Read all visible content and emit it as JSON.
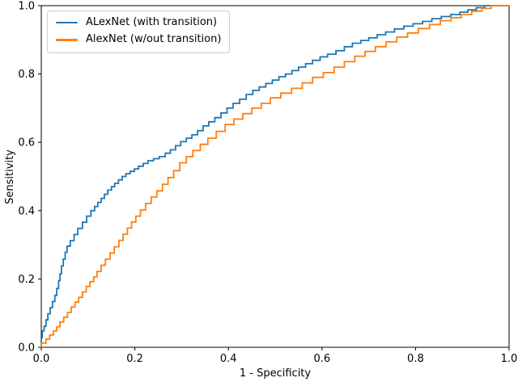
{
  "figure": {
    "background": "#ffffff",
    "axis_color": "#000000",
    "legend_border_color": "#cccccc"
  },
  "chart_data": {
    "type": "line",
    "subtype": "roc-step-curve",
    "title": "",
    "xlabel": "1 - Specificity",
    "ylabel": "Sensitivity",
    "xlim": [
      0.0,
      1.0
    ],
    "ylim": [
      0.0,
      1.0
    ],
    "grid": false,
    "legend_position": "upper-left",
    "x_ticks": [
      {
        "v": 0.0,
        "label": "0.0"
      },
      {
        "v": 0.2,
        "label": "0.2"
      },
      {
        "v": 0.4,
        "label": "0.4"
      },
      {
        "v": 0.6,
        "label": "0.6"
      },
      {
        "v": 0.8,
        "label": "0.8"
      },
      {
        "v": 1.0,
        "label": "1.0"
      }
    ],
    "y_ticks": [
      {
        "v": 0.0,
        "label": "0.0"
      },
      {
        "v": 0.2,
        "label": "0.2"
      },
      {
        "v": 0.4,
        "label": "0.4"
      },
      {
        "v": 0.6,
        "label": "0.6"
      },
      {
        "v": 0.8,
        "label": "0.8"
      },
      {
        "v": 1.0,
        "label": "1.0"
      }
    ],
    "series": [
      {
        "name": "ALexNet (with transition)",
        "color": "#1f77b4",
        "line_width": 1.8,
        "points": [
          [
            0.0,
            0.0
          ],
          [
            0.002,
            0.028
          ],
          [
            0.006,
            0.048
          ],
          [
            0.01,
            0.062
          ],
          [
            0.014,
            0.08
          ],
          [
            0.019,
            0.098
          ],
          [
            0.024,
            0.116
          ],
          [
            0.029,
            0.134
          ],
          [
            0.033,
            0.152
          ],
          [
            0.037,
            0.172
          ],
          [
            0.04,
            0.195
          ],
          [
            0.043,
            0.215
          ],
          [
            0.047,
            0.238
          ],
          [
            0.051,
            0.258
          ],
          [
            0.055,
            0.278
          ],
          [
            0.062,
            0.296
          ],
          [
            0.07,
            0.312
          ],
          [
            0.078,
            0.33
          ],
          [
            0.088,
            0.348
          ],
          [
            0.097,
            0.366
          ],
          [
            0.106,
            0.384
          ],
          [
            0.114,
            0.4
          ],
          [
            0.121,
            0.412
          ],
          [
            0.128,
            0.424
          ],
          [
            0.135,
            0.436
          ],
          [
            0.142,
            0.448
          ],
          [
            0.15,
            0.46
          ],
          [
            0.157,
            0.47
          ],
          [
            0.165,
            0.48
          ],
          [
            0.173,
            0.49
          ],
          [
            0.181,
            0.5
          ],
          [
            0.19,
            0.508
          ],
          [
            0.199,
            0.515
          ],
          [
            0.208,
            0.522
          ],
          [
            0.218,
            0.53
          ],
          [
            0.228,
            0.538
          ],
          [
            0.24,
            0.546
          ],
          [
            0.252,
            0.552
          ],
          [
            0.265,
            0.558
          ],
          [
            0.276,
            0.568
          ],
          [
            0.287,
            0.578
          ],
          [
            0.298,
            0.59
          ],
          [
            0.31,
            0.602
          ],
          [
            0.322,
            0.612
          ],
          [
            0.334,
            0.622
          ],
          [
            0.346,
            0.634
          ],
          [
            0.358,
            0.648
          ],
          [
            0.371,
            0.66
          ],
          [
            0.384,
            0.672
          ],
          [
            0.397,
            0.686
          ],
          [
            0.41,
            0.7
          ],
          [
            0.424,
            0.714
          ],
          [
            0.438,
            0.726
          ],
          [
            0.452,
            0.74
          ],
          [
            0.466,
            0.752
          ],
          [
            0.48,
            0.762
          ],
          [
            0.494,
            0.772
          ],
          [
            0.508,
            0.782
          ],
          [
            0.522,
            0.792
          ],
          [
            0.536,
            0.8
          ],
          [
            0.55,
            0.81
          ],
          [
            0.565,
            0.82
          ],
          [
            0.58,
            0.83
          ],
          [
            0.596,
            0.84
          ],
          [
            0.612,
            0.85
          ],
          [
            0.63,
            0.858
          ],
          [
            0.648,
            0.868
          ],
          [
            0.665,
            0.88
          ],
          [
            0.683,
            0.89
          ],
          [
            0.7,
            0.898
          ],
          [
            0.718,
            0.906
          ],
          [
            0.736,
            0.915
          ],
          [
            0.755,
            0.923
          ],
          [
            0.775,
            0.932
          ],
          [
            0.795,
            0.94
          ],
          [
            0.815,
            0.947
          ],
          [
            0.835,
            0.954
          ],
          [
            0.855,
            0.962
          ],
          [
            0.875,
            0.968
          ],
          [
            0.895,
            0.974
          ],
          [
            0.912,
            0.981
          ],
          [
            0.93,
            0.988
          ],
          [
            0.948,
            0.994
          ],
          [
            0.962,
            1.0
          ],
          [
            1.0,
            1.0
          ]
        ]
      },
      {
        "name": "AlexNet (w/out transition)",
        "color": "#ff7f0e",
        "line_width": 1.8,
        "points": [
          [
            0.0,
            0.0
          ],
          [
            0.01,
            0.012
          ],
          [
            0.018,
            0.024
          ],
          [
            0.026,
            0.036
          ],
          [
            0.033,
            0.048
          ],
          [
            0.04,
            0.06
          ],
          [
            0.048,
            0.074
          ],
          [
            0.056,
            0.088
          ],
          [
            0.064,
            0.102
          ],
          [
            0.072,
            0.118
          ],
          [
            0.08,
            0.132
          ],
          [
            0.088,
            0.146
          ],
          [
            0.096,
            0.162
          ],
          [
            0.104,
            0.178
          ],
          [
            0.112,
            0.192
          ],
          [
            0.119,
            0.206
          ],
          [
            0.128,
            0.222
          ],
          [
            0.137,
            0.24
          ],
          [
            0.147,
            0.258
          ],
          [
            0.156,
            0.276
          ],
          [
            0.166,
            0.294
          ],
          [
            0.175,
            0.313
          ],
          [
            0.184,
            0.331
          ],
          [
            0.193,
            0.349
          ],
          [
            0.202,
            0.367
          ],
          [
            0.212,
            0.384
          ],
          [
            0.223,
            0.402
          ],
          [
            0.235,
            0.421
          ],
          [
            0.247,
            0.44
          ],
          [
            0.259,
            0.458
          ],
          [
            0.271,
            0.477
          ],
          [
            0.283,
            0.497
          ],
          [
            0.296,
            0.517
          ],
          [
            0.31,
            0.54
          ],
          [
            0.324,
            0.558
          ],
          [
            0.34,
            0.576
          ],
          [
            0.356,
            0.594
          ],
          [
            0.374,
            0.612
          ],
          [
            0.393,
            0.632
          ],
          [
            0.412,
            0.652
          ],
          [
            0.431,
            0.668
          ],
          [
            0.45,
            0.684
          ],
          [
            0.47,
            0.7
          ],
          [
            0.49,
            0.714
          ],
          [
            0.512,
            0.73
          ],
          [
            0.535,
            0.744
          ],
          [
            0.558,
            0.758
          ],
          [
            0.58,
            0.774
          ],
          [
            0.603,
            0.79
          ],
          [
            0.626,
            0.804
          ],
          [
            0.648,
            0.82
          ],
          [
            0.67,
            0.836
          ],
          [
            0.692,
            0.852
          ],
          [
            0.714,
            0.866
          ],
          [
            0.737,
            0.88
          ],
          [
            0.76,
            0.894
          ],
          [
            0.783,
            0.908
          ],
          [
            0.806,
            0.92
          ],
          [
            0.83,
            0.933
          ],
          [
            0.853,
            0.945
          ],
          [
            0.876,
            0.956
          ],
          [
            0.898,
            0.965
          ],
          [
            0.92,
            0.974
          ],
          [
            0.942,
            0.984
          ],
          [
            0.962,
            0.992
          ],
          [
            0.98,
            1.0
          ],
          [
            1.0,
            1.0
          ]
        ]
      }
    ]
  }
}
